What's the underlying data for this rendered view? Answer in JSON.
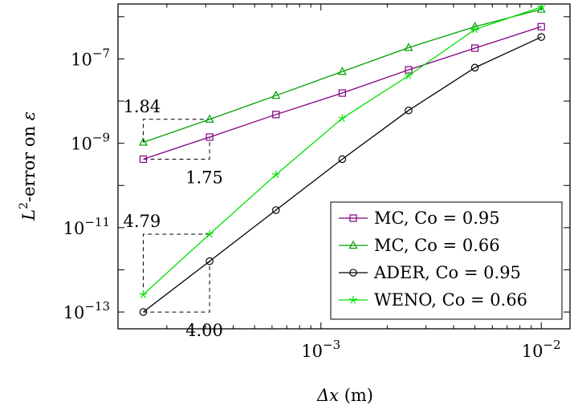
{
  "chart_data": {
    "type": "line",
    "xscale": "log",
    "yscale": "log",
    "xlim": [
      0.00012,
      0.0135
    ],
    "ylim": [
      4e-14,
      2e-06
    ],
    "xlabel": {
      "symbol": "Δx",
      "unit": "(m)"
    },
    "ylabel": {
      "base": "L",
      "sup": "2",
      "rest": "-error on ",
      "symbol": "ε"
    },
    "x_ticks": [
      {
        "value": 0.001,
        "base": "10",
        "exp": "−3"
      },
      {
        "value": 0.01,
        "base": "10",
        "exp": "−2"
      }
    ],
    "y_ticks": [
      {
        "value": 1e-13,
        "base": "10",
        "exp": "−13"
      },
      {
        "value": 1e-11,
        "base": "10",
        "exp": "−11"
      },
      {
        "value": 1e-09,
        "base": "10",
        "exp": "−9"
      },
      {
        "value": 1e-07,
        "base": "10",
        "exp": "−7"
      }
    ],
    "grid": false,
    "legend_position": "bottom-right",
    "series": [
      {
        "name": "MC, Co = 0.95",
        "color": "#800080",
        "marker": "square",
        "x": [
          0.00015625,
          0.0003125,
          0.000625,
          0.00125,
          0.0025,
          0.005,
          0.01
        ],
        "y": [
          4.2e-10,
          1.4e-09,
          4.8e-09,
          1.55e-08,
          5.5e-08,
          1.8e-07,
          5.8e-07
        ]
      },
      {
        "name": "MC, Co = 0.66",
        "color": "#00a000",
        "marker": "triangle",
        "x": [
          0.00015625,
          0.0003125,
          0.000625,
          0.00125,
          0.0025,
          0.005,
          0.01
        ],
        "y": [
          1.05e-09,
          3.7e-09,
          1.35e-08,
          5e-08,
          1.85e-07,
          5.8e-07,
          1.5e-06
        ]
      },
      {
        "name": "ADER, Co = 0.95",
        "color": "#000000",
        "marker": "circle",
        "x": [
          0.00015625,
          0.0003125,
          0.000625,
          0.00125,
          0.0025,
          0.005,
          0.01
        ],
        "y": [
          1e-13,
          1.6e-12,
          2.6e-11,
          4.2e-10,
          6e-09,
          6.2e-08,
          3.3e-07
        ]
      },
      {
        "name": "WENO, Co = 0.66",
        "color": "#00e000",
        "marker": "star",
        "x": [
          0.00015625,
          0.0003125,
          0.000625,
          0.00125,
          0.0025,
          0.005,
          0.01
        ],
        "y": [
          2.6e-13,
          7e-12,
          1.8e-10,
          3.9e-09,
          4e-08,
          5e-07,
          1.7e-06
        ]
      }
    ],
    "annotations": [
      {
        "text": "1.84",
        "x_range": [
          0.00015625,
          0.0003125
        ],
        "y_range": [
          1.05e-09,
          3.7e-09
        ],
        "side": "above"
      },
      {
        "text": "1.75",
        "x_range": [
          0.00015625,
          0.0003125
        ],
        "y_range": [
          4.2e-10,
          1.4e-09
        ],
        "side": "below"
      },
      {
        "text": "4.79",
        "x_range": [
          0.00015625,
          0.0003125
        ],
        "y_range": [
          2.6e-13,
          7e-12
        ],
        "side": "above"
      },
      {
        "text": "4.00",
        "x_range": [
          0.00015625,
          0.0003125
        ],
        "y_range": [
          1e-13,
          1.6e-12
        ],
        "side": "below"
      }
    ]
  }
}
